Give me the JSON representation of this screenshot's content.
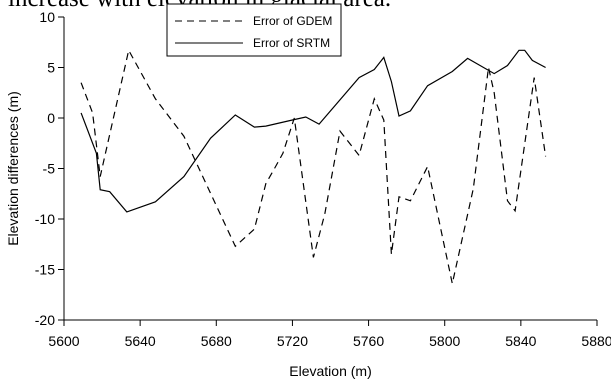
{
  "clipped_caption": "increase with elevation in glacial area.",
  "chart_data": {
    "type": "line",
    "title": "",
    "xlabel": "Elevation (m)",
    "ylabel": "Elevation differences (m)",
    "xlim": [
      5600,
      5880
    ],
    "ylim": [
      -20,
      10
    ],
    "x_ticks": [
      5600,
      5640,
      5680,
      5720,
      5760,
      5800,
      5840,
      5880
    ],
    "y_ticks": [
      10,
      5,
      0,
      -5,
      -10,
      -15,
      -20
    ],
    "grid": false,
    "legend_position": "top-left",
    "series": [
      {
        "name": "Error of GDEM",
        "style": "dashed",
        "color": "#000000",
        "points": [
          [
            5609,
            3.5
          ],
          [
            5615,
            0.5
          ],
          [
            5619,
            -5.8
          ],
          [
            5634,
            6.7
          ],
          [
            5648,
            1.9
          ],
          [
            5663,
            -1.8
          ],
          [
            5690,
            -12.7
          ],
          [
            5700,
            -11.0
          ],
          [
            5706,
            -6.5
          ],
          [
            5710,
            -5.2
          ],
          [
            5715,
            -3.5
          ],
          [
            5721,
            0.0
          ],
          [
            5731,
            -13.8
          ],
          [
            5737,
            -9.5
          ],
          [
            5745,
            -1.3
          ],
          [
            5755,
            -3.7
          ],
          [
            5763,
            1.9
          ],
          [
            5768,
            -0.2
          ],
          [
            5772,
            -13.5
          ],
          [
            5776,
            -7.8
          ],
          [
            5782,
            -8.2
          ],
          [
            5791,
            -4.8
          ],
          [
            5804,
            -16.4
          ],
          [
            5815,
            -7.0
          ],
          [
            5823,
            5.0
          ],
          [
            5826,
            2.5
          ],
          [
            5833,
            -8.2
          ],
          [
            5837,
            -9.2
          ],
          [
            5847,
            4.0
          ],
          [
            5853,
            -3.8
          ]
        ]
      },
      {
        "name": "Error of SRTM",
        "style": "solid",
        "color": "#000000",
        "points": [
          [
            5609,
            0.5
          ],
          [
            5617,
            -3.5
          ],
          [
            5619,
            -7.1
          ],
          [
            5624,
            -7.3
          ],
          [
            5633,
            -9.3
          ],
          [
            5648,
            -8.3
          ],
          [
            5663,
            -5.8
          ],
          [
            5677,
            -2.0
          ],
          [
            5690,
            0.3
          ],
          [
            5700,
            -0.9
          ],
          [
            5706,
            -0.8
          ],
          [
            5720,
            -0.2
          ],
          [
            5727,
            0.1
          ],
          [
            5734,
            -0.6
          ],
          [
            5755,
            4.0
          ],
          [
            5763,
            4.8
          ],
          [
            5768,
            6.0
          ],
          [
            5772,
            3.6
          ],
          [
            5776,
            0.2
          ],
          [
            5782,
            0.7
          ],
          [
            5791,
            3.2
          ],
          [
            5804,
            4.6
          ],
          [
            5812,
            5.9
          ],
          [
            5826,
            4.4
          ],
          [
            5833,
            5.2
          ],
          [
            5839,
            6.7
          ],
          [
            5842,
            6.7
          ],
          [
            5846,
            5.7
          ],
          [
            5853,
            5.0
          ]
        ]
      }
    ]
  }
}
